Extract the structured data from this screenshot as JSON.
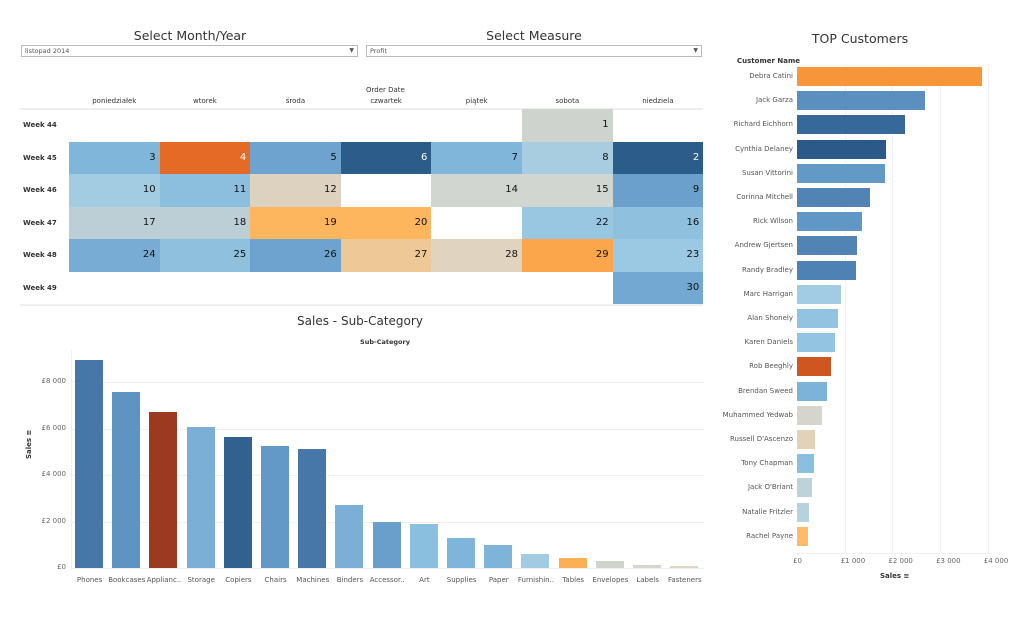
{
  "filters": {
    "month_year": {
      "title": "Select Month/Year",
      "value": "listopad 2014"
    },
    "measure": {
      "title": "Select Measure",
      "value": "Profit"
    }
  },
  "calendar": {
    "field_label": "Order Date",
    "days": [
      "poniedziałek",
      "wtorek",
      "środa",
      "czwartek",
      "piątek",
      "sobota",
      "niedziela"
    ],
    "weeks": [
      {
        "label": "Week 44",
        "cells": [
          null,
          null,
          null,
          null,
          null,
          {
            "day": "1",
            "color": "#cfd3ce"
          },
          null
        ]
      },
      {
        "label": "Week 45",
        "cells": [
          {
            "day": "3",
            "color": "#80b6da"
          },
          {
            "day": "4",
            "color": "#e56a25",
            "light": true
          },
          {
            "day": "5",
            "color": "#6fa3cf"
          },
          {
            "day": "6",
            "color": "#2b5c8a",
            "light": true
          },
          {
            "day": "7",
            "color": "#80b6da"
          },
          {
            "day": "8",
            "color": "#a9cde0"
          },
          {
            "day": "2",
            "color": "#2b5c8a",
            "light": true
          }
        ]
      },
      {
        "label": "Week 46",
        "cells": [
          {
            "day": "10",
            "color": "#a3cbe1"
          },
          {
            "day": "11",
            "color": "#8cbfde"
          },
          {
            "day": "12",
            "color": "#ddd2c0"
          },
          null,
          {
            "day": "14",
            "color": "#d1d6d1"
          },
          {
            "day": "15",
            "color": "#d1d6d1"
          },
          {
            "day": "9",
            "color": "#6aa0cb"
          }
        ]
      },
      {
        "label": "Week 47",
        "cells": [
          {
            "day": "17",
            "color": "#bccfd6"
          },
          {
            "day": "18",
            "color": "#bccfd6"
          },
          {
            "day": "19",
            "color": "#fdb55e"
          },
          {
            "day": "20",
            "color": "#fdb55e"
          },
          null,
          {
            "day": "22",
            "color": "#99c7e1"
          },
          {
            "day": "16",
            "color": "#8fc1df"
          }
        ]
      },
      {
        "label": "Week 48",
        "cells": [
          {
            "day": "24",
            "color": "#78acd4"
          },
          {
            "day": "25",
            "color": "#8fc1df"
          },
          {
            "day": "26",
            "color": "#6fa3cf"
          },
          {
            "day": "27",
            "color": "#efc897"
          },
          {
            "day": "28",
            "color": "#e0d3bf"
          },
          {
            "day": "29",
            "color": "#fca64b"
          },
          {
            "day": "23",
            "color": "#9bc8e2"
          }
        ]
      },
      {
        "label": "Week 49",
        "cells": [
          null,
          null,
          null,
          null,
          null,
          null,
          {
            "day": "30",
            "color": "#72a8d2"
          }
        ]
      }
    ]
  },
  "chart_data": [
    {
      "type": "bar",
      "title": "Sales - Sub-Category",
      "xlabel": "Sub-Category",
      "ylabel": "Sales",
      "ylim": [
        0,
        9000
      ],
      "yticks": [
        "£0",
        "£2 000",
        "£4 000",
        "£6 000",
        "£8 000"
      ],
      "ytick_values": [
        0,
        2000,
        4000,
        6000,
        8000
      ],
      "grid": true,
      "categories": [
        "Phones",
        "Bookcases",
        "Applianc..",
        "Storage",
        "Copiers",
        "Chairs",
        "Machines",
        "Binders",
        "Accessor..",
        "Art",
        "Supplies",
        "Paper",
        "Furnishin..",
        "Tables",
        "Envelopes",
        "Labels",
        "Fasteners"
      ],
      "values": [
        8950,
        7550,
        6700,
        6050,
        5650,
        5250,
        5100,
        2700,
        2000,
        1900,
        1300,
        1000,
        600,
        450,
        300,
        150,
        100
      ],
      "colors": [
        "#4677a8",
        "#5e93c2",
        "#9c3a21",
        "#7bafd6",
        "#30618f",
        "#6399c6",
        "#4677a8",
        "#7bafd6",
        "#6a9fcb",
        "#8bbfdf",
        "#80b5db",
        "#7eb3da",
        "#a0cbe3",
        "#fcb055",
        "#d0d3cb",
        "#d4d6ce",
        "#ddd5c4"
      ]
    },
    {
      "type": "bar",
      "orientation": "horizontal",
      "title": "TOP Customers",
      "ylabel": "Customer Name",
      "xlabel": "Sales",
      "xlim": [
        0,
        4000
      ],
      "xticks": [
        "£0",
        "£1 000",
        "£2 000",
        "£3 000",
        "£4 000"
      ],
      "xtick_values": [
        0,
        1000,
        2000,
        3000,
        4000
      ],
      "grid": true,
      "categories": [
        "Debra Catini",
        "Jack Garza",
        "Richard Eichhorn",
        "Cynthia Delaney",
        "Susan Vittorini",
        "Corinna Mitchell",
        "Rick Wilson",
        "Andrew Gjertsen",
        "Randy Bradley",
        "Marc Harrigan",
        "Alan Shonely",
        "Karen Daniels",
        "Rob Beeghly",
        "Brendan Sweed",
        "Muhammed Yedwab",
        "Russell D'Ascenzo",
        "Tony Chapman",
        "Jack O'Briant",
        "Natalie Fritzler",
        "Rachel Payne"
      ],
      "values": [
        3880,
        2680,
        2270,
        1860,
        1850,
        1520,
        1370,
        1260,
        1240,
        920,
        860,
        800,
        720,
        620,
        520,
        380,
        350,
        310,
        250,
        230
      ],
      "colors": [
        "#f7953a",
        "#5b8fbf",
        "#36699a",
        "#2c5a88",
        "#6399c6",
        "#5183b5",
        "#6097c6",
        "#5183b5",
        "#4f82b4",
        "#a2cbe4",
        "#92c3e0",
        "#93c4e1",
        "#d0561f",
        "#7db2d9",
        "#d5d5cd",
        "#e3d2b8",
        "#8cbfdf",
        "#bdd3d9",
        "#b6d2df",
        "#fdbb6b"
      ]
    }
  ]
}
